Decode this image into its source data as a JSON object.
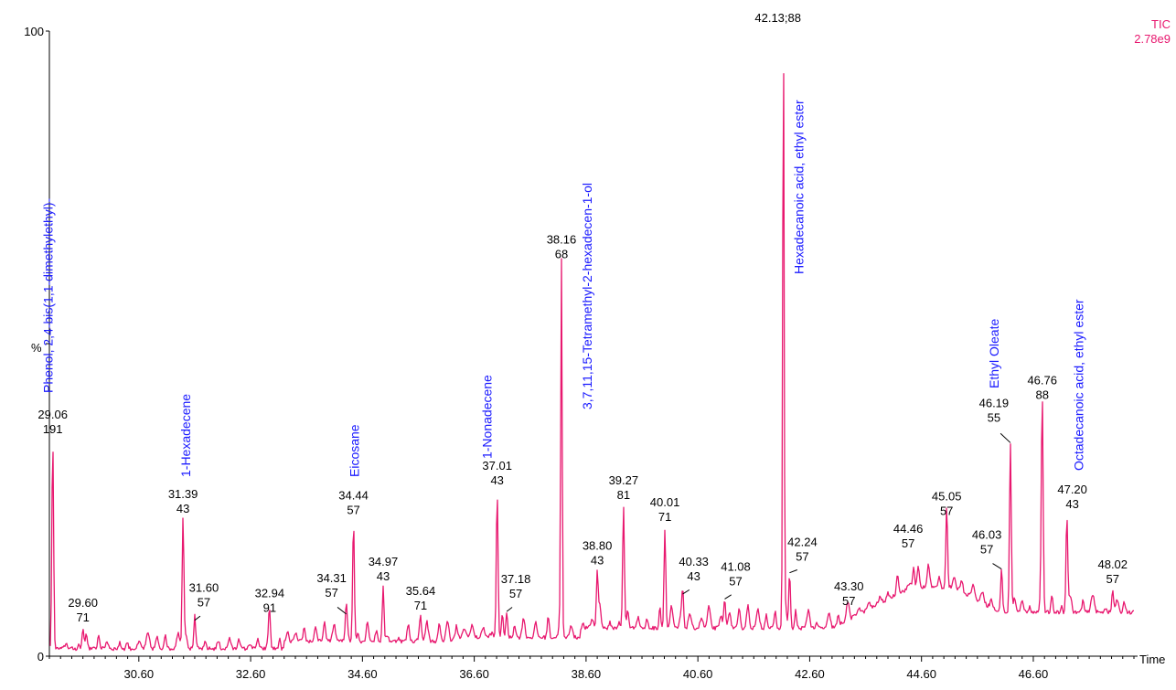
{
  "chart_data": {
    "type": "line",
    "xlabel": "Time",
    "ylabel": "%",
    "xlim": [
      29.0,
      48.4
    ],
    "ylim": [
      0,
      100
    ],
    "x_ticks": [
      "30.60",
      "32.60",
      "34.60",
      "36.60",
      "38.60",
      "40.60",
      "42.60",
      "44.60",
      "46.60"
    ],
    "y_ticks": [
      "0",
      "100"
    ],
    "grid": false,
    "legend": {
      "label": "TIC",
      "value": "2.78e9",
      "position": "top-right"
    },
    "series": [
      {
        "color": "#e8186f",
        "peaks": [
          {
            "time": 29.06,
            "label": "29.06",
            "ion": "191",
            "intensity": 34.5
          },
          {
            "time": 29.6,
            "label": "29.60",
            "ion": "71",
            "intensity": 4.4
          },
          {
            "time": 31.39,
            "label": "31.39",
            "ion": "43",
            "intensity": 21.8
          },
          {
            "time": 31.6,
            "label": "31.60",
            "ion": "57",
            "intensity": 5.6
          },
          {
            "time": 32.94,
            "label": "32.94",
            "ion": "91",
            "intensity": 5.9
          },
          {
            "time": 34.31,
            "label": "34.31",
            "ion": "57",
            "intensity": 6.6
          },
          {
            "time": 34.44,
            "label": "34.44",
            "ion": "57",
            "intensity": 21.6
          },
          {
            "time": 34.97,
            "label": "34.97",
            "ion": "43",
            "intensity": 11.0
          },
          {
            "time": 35.64,
            "label": "35.64",
            "ion": "71",
            "intensity": 6.3
          },
          {
            "time": 37.01,
            "label": "37.01",
            "ion": "43",
            "intensity": 26.3
          },
          {
            "time": 37.18,
            "label": "37.18",
            "ion": "57",
            "intensity": 7.0
          },
          {
            "time": 38.16,
            "label": "38.16",
            "ion": "68",
            "intensity": 62.5
          },
          {
            "time": 38.8,
            "label": "38.80",
            "ion": "43",
            "intensity": 13.5
          },
          {
            "time": 39.27,
            "label": "39.27",
            "ion": "81",
            "intensity": 24.0
          },
          {
            "time": 40.01,
            "label": "40.01",
            "ion": "71",
            "intensity": 20.5
          },
          {
            "time": 40.33,
            "label": "40.33",
            "ion": "43",
            "intensity": 9.8
          },
          {
            "time": 41.08,
            "label": "41.08",
            "ion": "57",
            "intensity": 9.0
          },
          {
            "time": 42.13,
            "label": "42.13;88",
            "ion": "",
            "intensity": 100
          },
          {
            "time": 42.24,
            "label": "42.24",
            "ion": "57",
            "intensity": 13.2
          },
          {
            "time": 43.3,
            "label": "43.30",
            "ion": "57",
            "intensity": 7.0
          },
          {
            "time": 44.46,
            "label": "44.46",
            "ion": "57",
            "intensity": 14.5
          },
          {
            "time": 45.05,
            "label": "45.05",
            "ion": "57",
            "intensity": 21.4
          },
          {
            "time": 46.03,
            "label": "46.03",
            "ion": "57",
            "intensity": 13.8
          },
          {
            "time": 46.19,
            "label": "46.19",
            "ion": "55",
            "intensity": 34.0
          },
          {
            "time": 46.76,
            "label": "46.76",
            "ion": "88",
            "intensity": 40.0
          },
          {
            "time": 47.2,
            "label": "47.20",
            "ion": "43",
            "intensity": 22.5
          },
          {
            "time": 48.02,
            "label": "48.02",
            "ion": "57",
            "intensity": 10.5
          }
        ]
      }
    ],
    "annotations": [
      {
        "text": "Phenol, 2,4-bis(1,1-dimethylethyl)-",
        "time": 29.06
      },
      {
        "text": "1-Hexadecene",
        "time": 31.39
      },
      {
        "text": "Eicosane",
        "time": 34.44
      },
      {
        "text": "1-Nonadecene",
        "time": 37.01
      },
      {
        "text": "3,7,11,15-Tetramethyl-2-hexadecen-1-ol",
        "time": 38.16
      },
      {
        "text": "Hexadecanoic acid, ethyl ester",
        "time": 42.13
      },
      {
        "text": "Ethyl Oleate",
        "time": 46.19
      },
      {
        "text": "Octadecanoic acid, ethyl ester",
        "time": 46.76
      }
    ]
  }
}
